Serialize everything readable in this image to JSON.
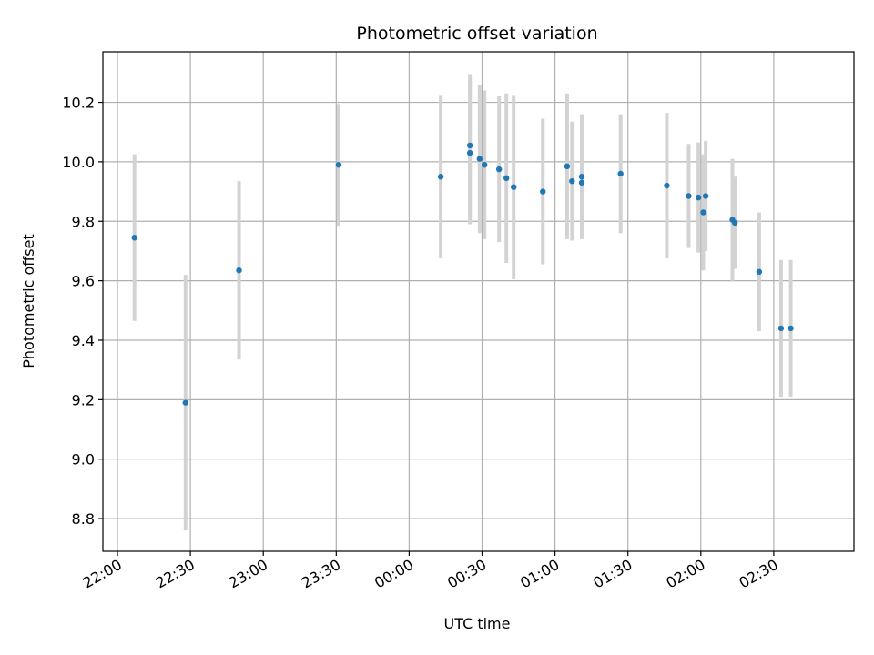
{
  "chart_data": {
    "type": "scatter",
    "title": "Photometric offset variation",
    "xlabel": "UTC time",
    "ylabel": "Photometric offset",
    "x_tick_labels": [
      "22:00",
      "22:30",
      "23:00",
      "23:30",
      "00:00",
      "00:30",
      "01:00",
      "01:30",
      "02:00",
      "02:30"
    ],
    "y_tick_labels": [
      "8.8",
      "9.0",
      "9.2",
      "9.4",
      "9.6",
      "9.8",
      "10.0",
      "10.2"
    ],
    "y_ticks": [
      8.8,
      9.0,
      9.2,
      9.4,
      9.6,
      9.8,
      10.0,
      10.2
    ],
    "xlim": [
      "21:54",
      "03:03"
    ],
    "ylim": [
      8.69,
      10.37
    ],
    "grid": true,
    "legend": "none",
    "marker_color": "#1f77b4",
    "errorbar_color": "#d3d3d3",
    "points": [
      {
        "x": "22:07",
        "y": 9.745,
        "err": 0.28
      },
      {
        "x": "22:28",
        "y": 9.19,
        "err": 0.43
      },
      {
        "x": "22:50",
        "y": 9.635,
        "err": 0.3
      },
      {
        "x": "23:31",
        "y": 9.99,
        "err": 0.205
      },
      {
        "x": "00:13",
        "y": 9.95,
        "err": 0.275
      },
      {
        "x": "00:25",
        "y": 10.055,
        "err": 0.24
      },
      {
        "x": "00:25",
        "y": 10.03,
        "err": 0.24
      },
      {
        "x": "00:29",
        "y": 10.01,
        "err": 0.25
      },
      {
        "x": "00:31",
        "y": 9.99,
        "err": 0.25
      },
      {
        "x": "00:37",
        "y": 9.975,
        "err": 0.245
      },
      {
        "x": "00:40",
        "y": 9.945,
        "err": 0.285
      },
      {
        "x": "00:43",
        "y": 9.915,
        "err": 0.31
      },
      {
        "x": "00:55",
        "y": 9.9,
        "err": 0.245
      },
      {
        "x": "01:05",
        "y": 9.985,
        "err": 0.245
      },
      {
        "x": "01:07",
        "y": 9.935,
        "err": 0.2
      },
      {
        "x": "01:11",
        "y": 9.93,
        "err": 0.165
      },
      {
        "x": "01:11",
        "y": 9.95,
        "err": 0.21
      },
      {
        "x": "01:27",
        "y": 9.96,
        "err": 0.2
      },
      {
        "x": "01:46",
        "y": 9.92,
        "err": 0.245
      },
      {
        "x": "01:55",
        "y": 9.885,
        "err": 0.175
      },
      {
        "x": "01:59",
        "y": 9.88,
        "err": 0.185
      },
      {
        "x": "02:01",
        "y": 9.83,
        "err": 0.195
      },
      {
        "x": "02:02",
        "y": 9.885,
        "err": 0.185
      },
      {
        "x": "02:13",
        "y": 9.805,
        "err": 0.205
      },
      {
        "x": "02:14",
        "y": 9.795,
        "err": 0.155
      },
      {
        "x": "02:24",
        "y": 9.63,
        "err": 0.2
      },
      {
        "x": "02:33",
        "y": 9.44,
        "err": 0.23
      },
      {
        "x": "02:37",
        "y": 9.44,
        "err": 0.23
      }
    ]
  }
}
